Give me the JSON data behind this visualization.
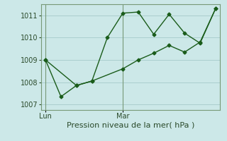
{
  "xlabel": "Pression niveau de la mer( hPa )",
  "bg_color": "#cce8e8",
  "line_color": "#1a5c1a",
  "grid_color": "#aacece",
  "axis_color": "#779977",
  "ylim": [
    1006.75,
    1011.5
  ],
  "xlim": [
    -0.3,
    11.3
  ],
  "xtick_labels": [
    "Lun",
    "Mar"
  ],
  "xtick_positions": [
    0,
    5
  ],
  "ytick_values": [
    1007,
    1008,
    1009,
    1010,
    1011
  ],
  "line1_x": [
    0,
    1,
    2,
    3,
    4,
    5,
    6,
    7,
    8,
    9,
    10,
    11
  ],
  "line1_y": [
    1009.0,
    1007.35,
    1007.85,
    1008.05,
    1010.0,
    1011.1,
    1011.15,
    1010.15,
    1011.05,
    1010.2,
    1009.75,
    1011.3
  ],
  "line2_x": [
    0,
    2,
    3,
    5,
    6,
    7,
    8,
    9,
    10,
    11
  ],
  "line2_y": [
    1009.0,
    1007.85,
    1008.05,
    1008.6,
    1009.0,
    1009.3,
    1009.65,
    1009.35,
    1009.8,
    1011.3
  ],
  "marker": "D",
  "marker_size": 2.5,
  "line_width": 1.0,
  "xlabel_fontsize": 8,
  "tick_fontsize": 7
}
